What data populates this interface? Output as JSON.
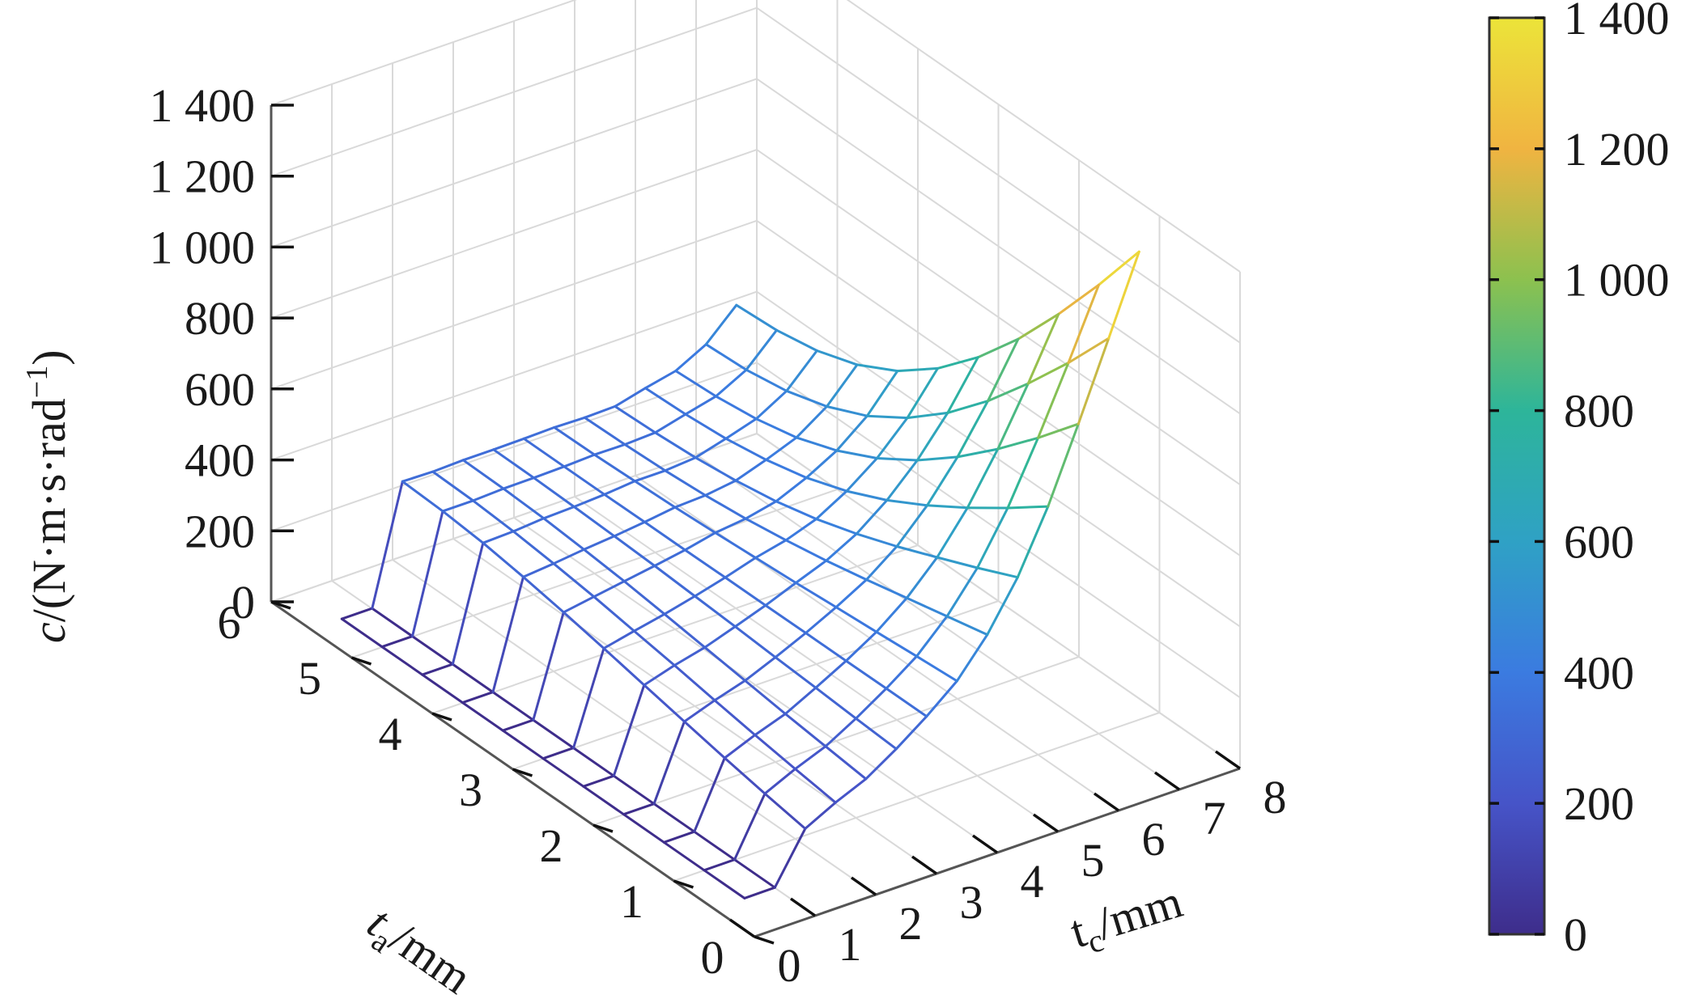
{
  "chart_data": {
    "type": "surface",
    "x_axis": {
      "label_base": "t",
      "label_sub": "a",
      "label_unit": "/mm",
      "ticks": [
        "0",
        "1",
        "2",
        "3",
        "4",
        "5",
        "6"
      ],
      "range": [
        0,
        6
      ]
    },
    "y_axis": {
      "label_base": "t",
      "label_sub": "c",
      "label_unit": "/mm",
      "ticks": [
        "0",
        "1",
        "2",
        "3",
        "4",
        "5",
        "6",
        "7",
        "8"
      ],
      "range": [
        0,
        8
      ]
    },
    "z_axis": {
      "label_italic": "c",
      "label_rest": "/(N·m·s·rad",
      "label_sup": "−1",
      "label_close": ")",
      "ticks": [
        "0",
        "200",
        "400",
        "600",
        "800",
        "1 000",
        "1 200",
        "1 400"
      ],
      "range": [
        0,
        1400
      ]
    },
    "ta_values": [
      0.5,
      1,
      1.5,
      2,
      2.5,
      3,
      3.5,
      4,
      4.5,
      5,
      5.5
    ],
    "tc_values": [
      0.5,
      1,
      1.5,
      2,
      2.5,
      3,
      3.5,
      4,
      4.5,
      5,
      5.5,
      6,
      6.5,
      7
    ],
    "z": [
      [
        0.27,
        0.4,
        0.52,
        0.6,
        0.68,
        0.74,
        0.8,
        0.84,
        0.88,
        0.91,
        0.94
      ],
      [
        0.58,
        0.62,
        0.67,
        0.72,
        0.78,
        0.83,
        0.88,
        0.92,
        0.95,
        0.98,
        1.0
      ],
      [
        137,
        157,
        179,
        203,
        227,
        252,
        275,
        296,
        313,
        324,
        329
      ],
      [
        181,
        197,
        214,
        233,
        253,
        271,
        289,
        304,
        316,
        324,
        327
      ],
      [
        218,
        231,
        244,
        259,
        274,
        289,
        303,
        314,
        323,
        328,
        330
      ],
      [
        273,
        280,
        288,
        295,
        303,
        310,
        317,
        322,
        326,
        329,
        330
      ],
      [
        335,
        335,
        334,
        334,
        333,
        333,
        332,
        332,
        331,
        331,
        331
      ],
      [
        405,
        396,
        386,
        377,
        367,
        359,
        351,
        344,
        339,
        335,
        333
      ],
      [
        506,
        479,
        452,
        425,
        400,
        379,
        361,
        348,
        339,
        334,
        331
      ],
      [
        638,
        586,
        537,
        489,
        446,
        409,
        380,
        360,
        346,
        338,
        333
      ],
      [
        808,
        725,
        647,
        575,
        511,
        458,
        417,
        389,
        370,
        360,
        355
      ],
      [
        1011,
        893,
        783,
        682,
        594,
        521,
        464,
        422,
        396,
        381,
        374
      ],
      [
        1223,
        1075,
        938,
        810,
        698,
        605,
        532,
        480,
        445,
        426,
        419
      ],
      [
        1437,
        1265,
        1104,
        955,
        825,
        715,
        629,
        568,
        529,
        508,
        500
      ]
    ],
    "colormap": "parula",
    "colorbar": {
      "ticks": [
        "0",
        "200",
        "400",
        "600",
        "800",
        "1 000",
        "1 200",
        "1 400"
      ],
      "range": [
        0,
        1400
      ]
    },
    "grid": true
  }
}
